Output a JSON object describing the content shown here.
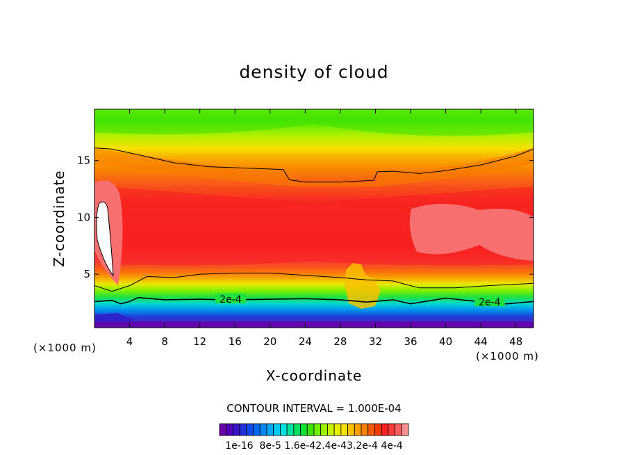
{
  "chart_data": {
    "type": "heatmap",
    "title": "density of cloud",
    "xlabel": "X-coordinate",
    "ylabel": "Z-coordinate",
    "x_unit_left": "(×1000 m)",
    "x_unit_right": "(×1000 m)",
    "xlim": [
      0,
      50
    ],
    "ylim": [
      0.3,
      19.5
    ],
    "x_ticks": [
      4,
      8,
      12,
      16,
      20,
      24,
      28,
      32,
      36,
      40,
      44,
      48
    ],
    "y_ticks": [
      5,
      10,
      15
    ],
    "x_tick_labels": [
      "4",
      "8",
      "12",
      "16",
      "20",
      "24",
      "28",
      "32",
      "36",
      "40",
      "44",
      "48"
    ],
    "y_tick_labels": [
      "5",
      "10",
      "15"
    ],
    "contour_interval_text": "CONTOUR INTERVAL = 1.000E-04",
    "contour_labels": [
      {
        "text": "2e-4",
        "x": 15.5,
        "z": 2.75
      },
      {
        "text": "2e-4",
        "x": 45.0,
        "z": 2.5
      }
    ],
    "contour_lines": [
      {
        "name": "upper",
        "points": [
          [
            0,
            16.1
          ],
          [
            2,
            16.0
          ],
          [
            5,
            15.5
          ],
          [
            9,
            14.8
          ],
          [
            13,
            14.45
          ],
          [
            18,
            14.3
          ],
          [
            21.5,
            14.2
          ],
          [
            22.2,
            13.3
          ],
          [
            24,
            13.1
          ],
          [
            28,
            13.1
          ],
          [
            31.8,
            13.25
          ],
          [
            32.2,
            14.0
          ],
          [
            34,
            14.05
          ],
          [
            37,
            13.85
          ],
          [
            40,
            14.1
          ],
          [
            44,
            14.6
          ],
          [
            48,
            15.4
          ],
          [
            50,
            16.0
          ]
        ]
      },
      {
        "name": "mid",
        "points": [
          [
            0,
            4.0
          ],
          [
            2,
            3.5
          ],
          [
            4,
            4.0
          ],
          [
            6,
            4.8
          ],
          [
            9,
            4.7
          ],
          [
            12,
            5.0
          ],
          [
            16,
            5.1
          ],
          [
            20,
            5.1
          ],
          [
            24,
            4.9
          ],
          [
            28,
            4.7
          ],
          [
            31,
            4.5
          ],
          [
            34,
            4.4
          ],
          [
            35.5,
            4.1
          ],
          [
            37,
            3.8
          ],
          [
            41,
            3.8
          ],
          [
            45,
            4.0
          ],
          [
            50,
            4.2
          ]
        ]
      },
      {
        "name": "2e-4",
        "points": [
          [
            0,
            2.6
          ],
          [
            2,
            2.7
          ],
          [
            3,
            2.4
          ],
          [
            4,
            2.6
          ],
          [
            5,
            2.95
          ],
          [
            8,
            2.75
          ],
          [
            12,
            2.8
          ],
          [
            15,
            2.75
          ],
          [
            20,
            2.8
          ],
          [
            24,
            2.85
          ],
          [
            28,
            2.75
          ],
          [
            31,
            2.55
          ],
          [
            34,
            2.75
          ],
          [
            36,
            2.4
          ],
          [
            40,
            2.9
          ],
          [
            43,
            2.65
          ],
          [
            47,
            2.4
          ],
          [
            50,
            2.6
          ]
        ]
      }
    ],
    "colorbar": {
      "min_label": "1e-16",
      "tick_labels": [
        "1e-16",
        "8e-5",
        "1.6e-4",
        "2.4e-4",
        "3.2e-4",
        "4e-4"
      ],
      "tick_text": "1e-16  8e-5 1.6e-42.4e-43.2e-4 4e-4",
      "n_levels": 28,
      "colors": [
        "#6a00a8",
        "#5000b8",
        "#3a14c8",
        "#2030d8",
        "#1048e8",
        "#0068f0",
        "#0088f0",
        "#00a8f0",
        "#00c8f0",
        "#00e0e0",
        "#00e0a0",
        "#00e060",
        "#10e030",
        "#40e000",
        "#70f000",
        "#a0f000",
        "#c8f000",
        "#e8f000",
        "#f8e000",
        "#f8c000",
        "#f8a000",
        "#f88000",
        "#f85a00",
        "#f83c00",
        "#f82020",
        "#f83c3c",
        "#f86060",
        "#f89090"
      ]
    }
  }
}
